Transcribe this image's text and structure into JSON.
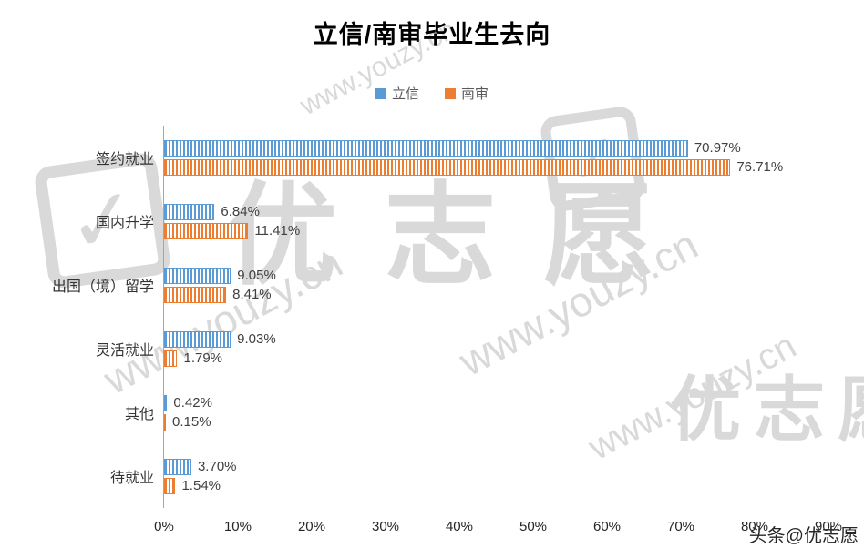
{
  "chart_data": {
    "type": "bar",
    "orientation": "horizontal",
    "title": "立信/南审毕业生去向",
    "categories": [
      "签约就业",
      "国内升学",
      "出国（境）留学",
      "灵活就业",
      "其他",
      "待就业"
    ],
    "series": [
      {
        "name": "立信",
        "color": "#5b9bd5",
        "values": [
          70.97,
          6.84,
          9.05,
          9.03,
          0.42,
          3.7
        ],
        "labels": [
          "70.97%",
          "6.84%",
          "9.05%",
          "9.03%",
          "0.42%",
          "3.70%"
        ]
      },
      {
        "name": "南审",
        "color": "#ed7d31",
        "values": [
          76.71,
          11.41,
          8.41,
          1.79,
          0.15,
          1.54
        ],
        "labels": [
          "76.71%",
          "11.41%",
          "8.41%",
          "1.79%",
          "0.15%",
          "1.54%"
        ]
      }
    ],
    "xlim": [
      0,
      90
    ],
    "ticks": [
      "0%",
      "10%",
      "20%",
      "30%",
      "40%",
      "50%",
      "60%",
      "70%",
      "80%",
      "90%"
    ],
    "xlabel": "",
    "ylabel": "",
    "grid": false,
    "legend_position": "top"
  },
  "watermark": {
    "brand": "优志愿",
    "url": "www.youzy.cn",
    "check": "✓",
    "corner": "头条@优志愿"
  }
}
